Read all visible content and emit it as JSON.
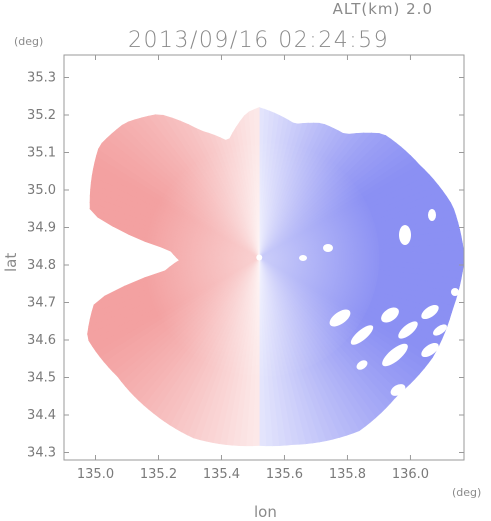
{
  "header": {
    "altitude_label": "ALT(km) 2.0",
    "datetime": "2013/09/16 02:24:59"
  },
  "axes": {
    "xlabel": "lon",
    "ylabel": "lat",
    "x_unit": "(deg)",
    "y_unit": "(deg)",
    "xlim": [
      134.9,
      136.17
    ],
    "ylim": [
      34.28,
      35.36
    ],
    "x_ticks": [
      "135.0",
      "135.2",
      "135.4",
      "135.6",
      "135.8",
      "136.0"
    ],
    "y_ticks": [
      "34.3",
      "34.4",
      "34.5",
      "34.6",
      "34.7",
      "34.8",
      "34.9",
      "35.0",
      "35.1",
      "35.2",
      "35.3"
    ]
  },
  "radar": {
    "center_lon": 135.52,
    "center_lat": 34.82,
    "approaching_color": "#6e74f0",
    "receding_color": "#f08a8a",
    "colormap": "doppler-velocity-diverging"
  }
}
